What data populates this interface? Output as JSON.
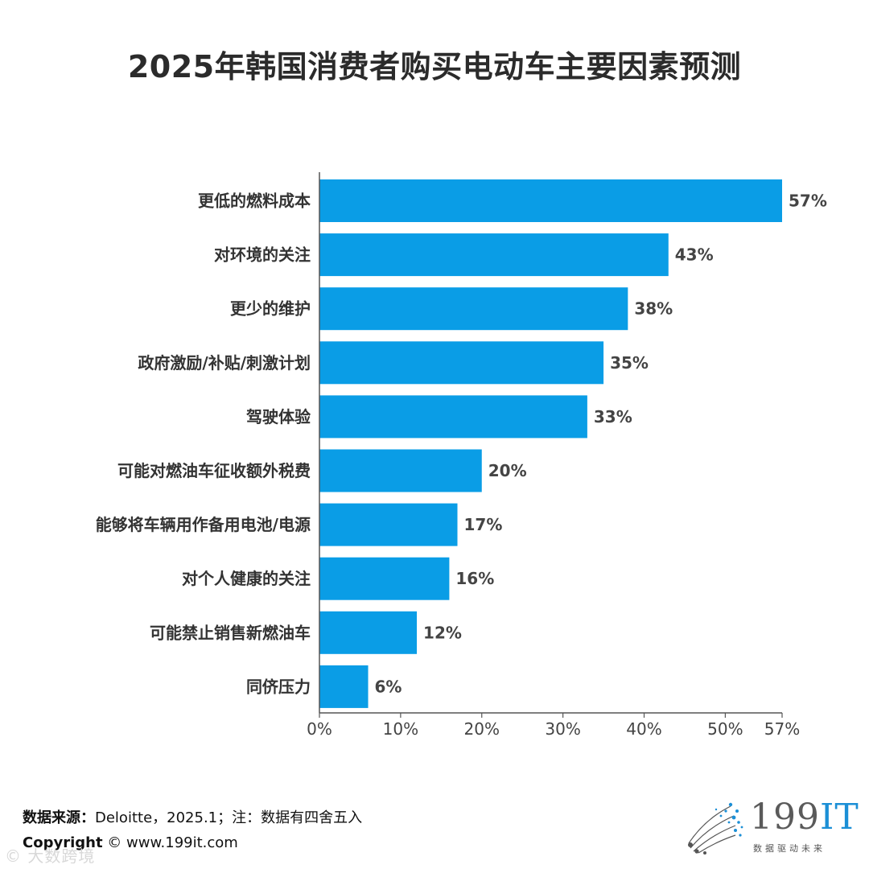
{
  "title": "2025年韩国消费者购买电动车主要因素预测",
  "chart_data": {
    "type": "bar",
    "orientation": "horizontal",
    "title": "2025年韩国消费者购买电动车主要因素预测",
    "categories": [
      "更低的燃料成本",
      "对环境的关注",
      "更少的维护",
      "政府激励/补贴/刺激计划",
      "驾驶体验",
      "可能对燃油车征收额外税费",
      "能够将车辆用作备用电池/电源",
      "对个人健康的关注",
      "可能禁止销售新燃油车",
      "同侪压力"
    ],
    "values": [
      57,
      43,
      38,
      35,
      33,
      20,
      17,
      16,
      12,
      6
    ],
    "value_labels": [
      "57%",
      "43%",
      "38%",
      "35%",
      "33%",
      "20%",
      "17%",
      "16%",
      "12%",
      "6%"
    ],
    "xlim": [
      0,
      57
    ],
    "x_ticks": [
      0,
      10,
      20,
      30,
      40,
      50,
      57
    ],
    "x_tick_labels": [
      "0%",
      "10%",
      "20%",
      "30%",
      "40%",
      "50%",
      "57%"
    ],
    "grid": false,
    "bar_color": "#0a9de6"
  },
  "footer": {
    "source_label": "数据来源：",
    "source_text": "Deloitte，2025.1；注：数据有四舍五入",
    "copyright_label": "Copyright",
    "copyright_text": "© www.199it.com",
    "watermark": "© 大数跨境"
  },
  "logo": {
    "text_main": "199",
    "text_accent": "IT",
    "tagline": "数据驱动未来"
  }
}
